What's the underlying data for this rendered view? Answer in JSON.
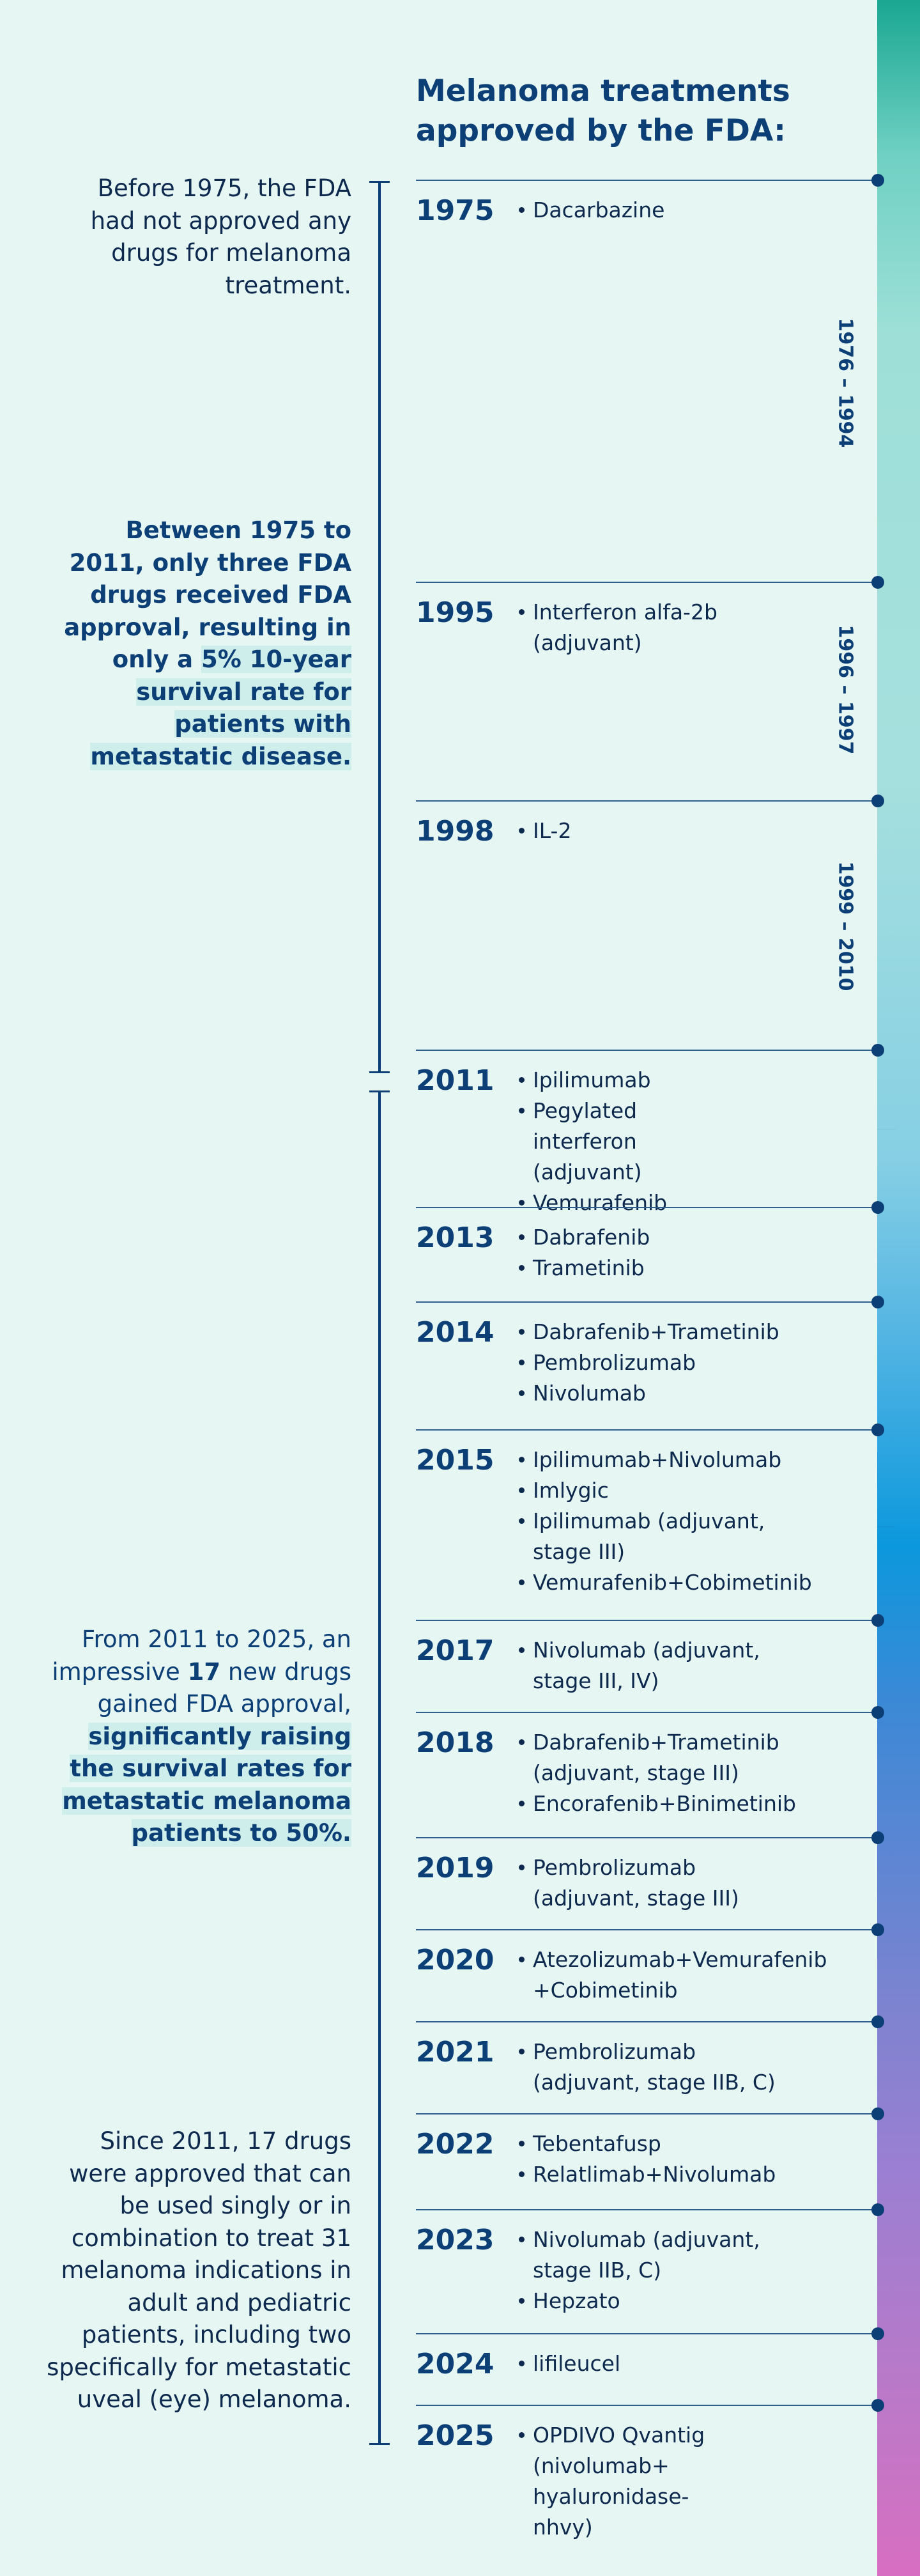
{
  "title": "Melanoma treatments approved by the FDA:",
  "notes": {
    "before_1975": "Before 1975, the FDA had not approved any drugs for melanoma treatment.",
    "between_1975_2011_a": "Between 1975 to 2011, only three FDA drugs received FDA approval, resulting in only a",
    "between_1975_2011_b": "5% 10-year survival rate for patients with metastatic disease.",
    "from_2011_a": "From 2011 to 2025, an impressive",
    "from_2011_num": "17",
    "from_2011_b": "new drugs gained FDA approval,",
    "from_2011_c": "significantly raising the survival rates for metastatic melanoma patients to 50%.",
    "since_2011": "Since 2011, 17 drugs were approved that can be used singly or in combination to treat 31 melanoma indications in adult and pediatric patients, including two specifically for metastatic uveal (eye) melanoma."
  },
  "gaps": [
    "1976 – 1994",
    "1996 – 1997",
    "1999 – 2010"
  ],
  "timeline": [
    {
      "year": "1975",
      "drugs": [
        "Dacarbazine"
      ]
    },
    {
      "year": "1995",
      "drugs": [
        "Interferon alfa-2b (adjuvant)"
      ]
    },
    {
      "year": "1998",
      "drugs": [
        "IL-2"
      ]
    },
    {
      "year": "2011",
      "drugs": [
        "Ipilimumab",
        "Pegylated interferon (adjuvant)",
        "Vemurafenib"
      ]
    },
    {
      "year": "2013",
      "drugs": [
        "Dabrafenib",
        "Trametinib"
      ]
    },
    {
      "year": "2014",
      "drugs": [
        "Dabrafenib+Trametinib",
        "Pembrolizumab",
        "Nivolumab"
      ]
    },
    {
      "year": "2015",
      "drugs": [
        "Ipilimumab+Nivolumab",
        "Imlygic",
        "Ipilimumab (adjuvant, stage III)",
        "Vemurafenib+Cobimetinib"
      ]
    },
    {
      "year": "2017",
      "drugs": [
        "Nivolumab (adjuvant, stage III, IV)"
      ]
    },
    {
      "year": "2018",
      "drugs": [
        "Dabrafenib+Trametinib (adjuvant, stage III)",
        "Encorafenib+Binimetinib"
      ]
    },
    {
      "year": "2019",
      "drugs": [
        "Pembrolizumab (adjuvant, stage III)"
      ]
    },
    {
      "year": "2020",
      "drugs": [
        "Atezolizumab+Vemurafenib +Cobimetinib"
      ]
    },
    {
      "year": "2021",
      "drugs": [
        "Pembrolizumab (adjuvant, stage IIB, C)"
      ]
    },
    {
      "year": "2022",
      "drugs": [
        "Tebentafusp",
        "Relatlimab+Nivolumab"
      ]
    },
    {
      "year": "2023",
      "drugs": [
        "Nivolumab (adjuvant, stage IIB, C)",
        "Hepzato"
      ]
    },
    {
      "year": "2024",
      "drugs": [
        "lifileucel"
      ]
    },
    {
      "year": "2025",
      "drugs": [
        "OPDIVO Qvantig (nivolumab+ hyaluronidase-nhvy)"
      ]
    }
  ]
}
